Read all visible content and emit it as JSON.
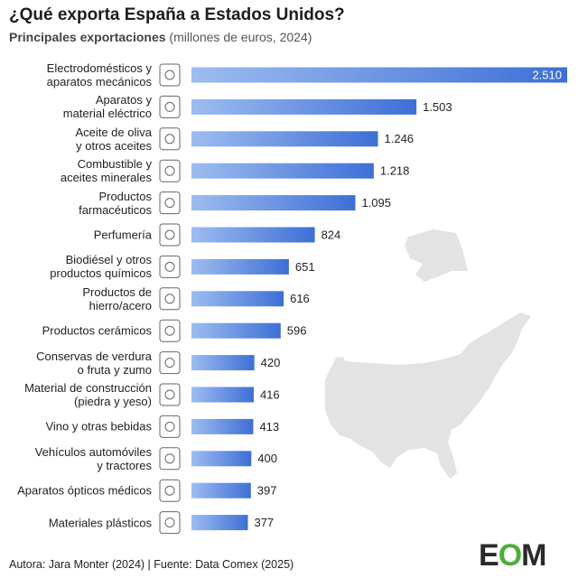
{
  "chart_data": {
    "type": "bar",
    "orientation": "horizontal",
    "title": "¿Qué exporta España a Estados Unidos?",
    "subtitle": "Principales exportaciones",
    "subtitle_note": "(millones de euros, 2024)",
    "categories": [
      "Electrodomésticos y\naparatos mecánicos",
      "Aparatos y\nmaterial eléctrico",
      "Aceite de oliva\ny otros aceites",
      "Combustible y\naceites minerales",
      "Productos\nfarmacéuticos",
      "Perfumería",
      "Biodiésel y otros\nproductos químicos",
      "Productos de\nhierro/acero",
      "Productos cerámicos",
      "Conservas de verdura\no fruta y zumo",
      "Material de construcción\n(piedra y yeso)",
      "Vino y otras bebidas",
      "Vehículos automóviles\ny tractores",
      "Aparatos ópticos médicos",
      "Materiales plásticos"
    ],
    "values": [
      2510,
      1503,
      1246,
      1218,
      1095,
      824,
      651,
      616,
      596,
      420,
      416,
      413,
      400,
      397,
      377
    ],
    "value_labels": [
      "2.510",
      "1.503",
      "1.246",
      "1.218",
      "1.095",
      "824",
      "651",
      "616",
      "596",
      "420",
      "416",
      "413",
      "400",
      "397",
      "377"
    ],
    "color": "#3d6fd6",
    "footer": "Autora: Jara Monter (2024) | Fuente: Data Comex (2025)",
    "logo": [
      "E",
      "O",
      "M"
    ]
  }
}
